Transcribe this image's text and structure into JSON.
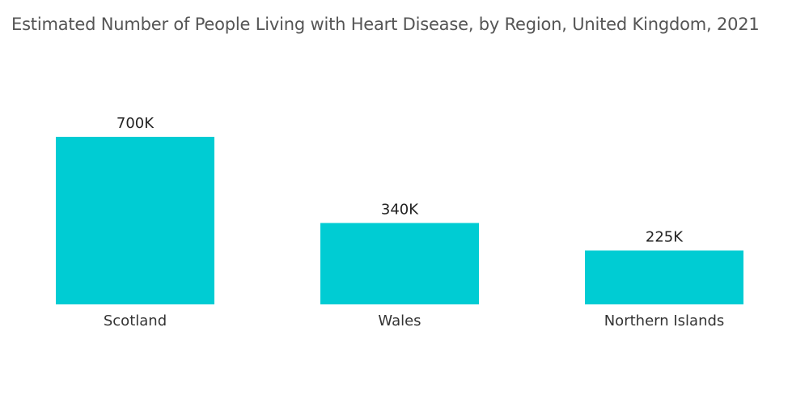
{
  "chart_data": {
    "type": "bar",
    "title": "Estimated Number of People Living with Heart Disease, by Region, United Kingdom, 2021",
    "categories": [
      "Scotland",
      "Wales",
      "Northern Islands"
    ],
    "values": [
      700000,
      340000,
      225000
    ],
    "value_labels": [
      "700K",
      "340K",
      "225K"
    ],
    "xlabel": "",
    "ylabel": "",
    "ylim": [
      0,
      700000
    ],
    "grid": false,
    "legend": "none",
    "bar_color": "#00CCD3"
  }
}
